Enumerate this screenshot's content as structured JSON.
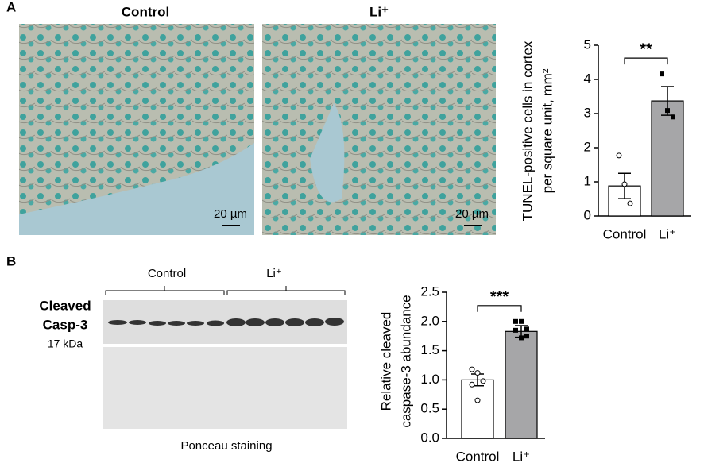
{
  "panels": {
    "a_label": "A",
    "b_label": "B",
    "image_control_title": "Control",
    "image_li_title": "Li⁺",
    "scale_bar_1": "20 µm",
    "scale_bar_2": "20 µm",
    "blot_control": "Control",
    "blot_li": "Li⁺",
    "blot_label_1": "Cleaved",
    "blot_label_2": "Casp-3",
    "blot_size": "17 kDa",
    "ponceau": "Ponceau staining"
  },
  "chart_data": [
    {
      "type": "bar",
      "ylabel": [
        "TUNEL-positive cells in cortex",
        "per square unit, mm²"
      ],
      "categories": [
        "Control",
        "Li⁺"
      ],
      "values": [
        0.88,
        3.37
      ],
      "errors": [
        0.37,
        0.42
      ],
      "colors": [
        "#ffffff",
        "#a6a6a8"
      ],
      "points": [
        [
          1.77,
          0.93,
          0.37
        ],
        [
          4.16,
          3.09,
          2.9
        ]
      ],
      "ylim": [
        0,
        5
      ],
      "yticks": [
        0,
        1,
        2,
        3,
        4,
        5
      ],
      "significance": "**"
    },
    {
      "type": "bar",
      "ylabel": [
        "Relative cleaved",
        "caspase-3 abundance"
      ],
      "categories": [
        "Control",
        "Li⁺"
      ],
      "values": [
        1.0,
        1.83
      ],
      "errors": [
        0.1,
        0.1
      ],
      "colors": [
        "#ffffff",
        "#a6a6a8"
      ],
      "points": [
        [
          1.18,
          1.12,
          0.98,
          0.92,
          0.65
        ],
        [
          2.0,
          2.0,
          1.87,
          1.85,
          1.72,
          1.75
        ]
      ],
      "ylim": [
        0,
        2.5
      ],
      "yticks": [
        {
          "value": 0,
          "label": "0.0"
        },
        0.5,
        {
          "value": 1,
          "label": "1.0"
        },
        1.5,
        {
          "value": 2,
          "label": "2.0"
        },
        2.5
      ],
      "significance": "***"
    }
  ]
}
